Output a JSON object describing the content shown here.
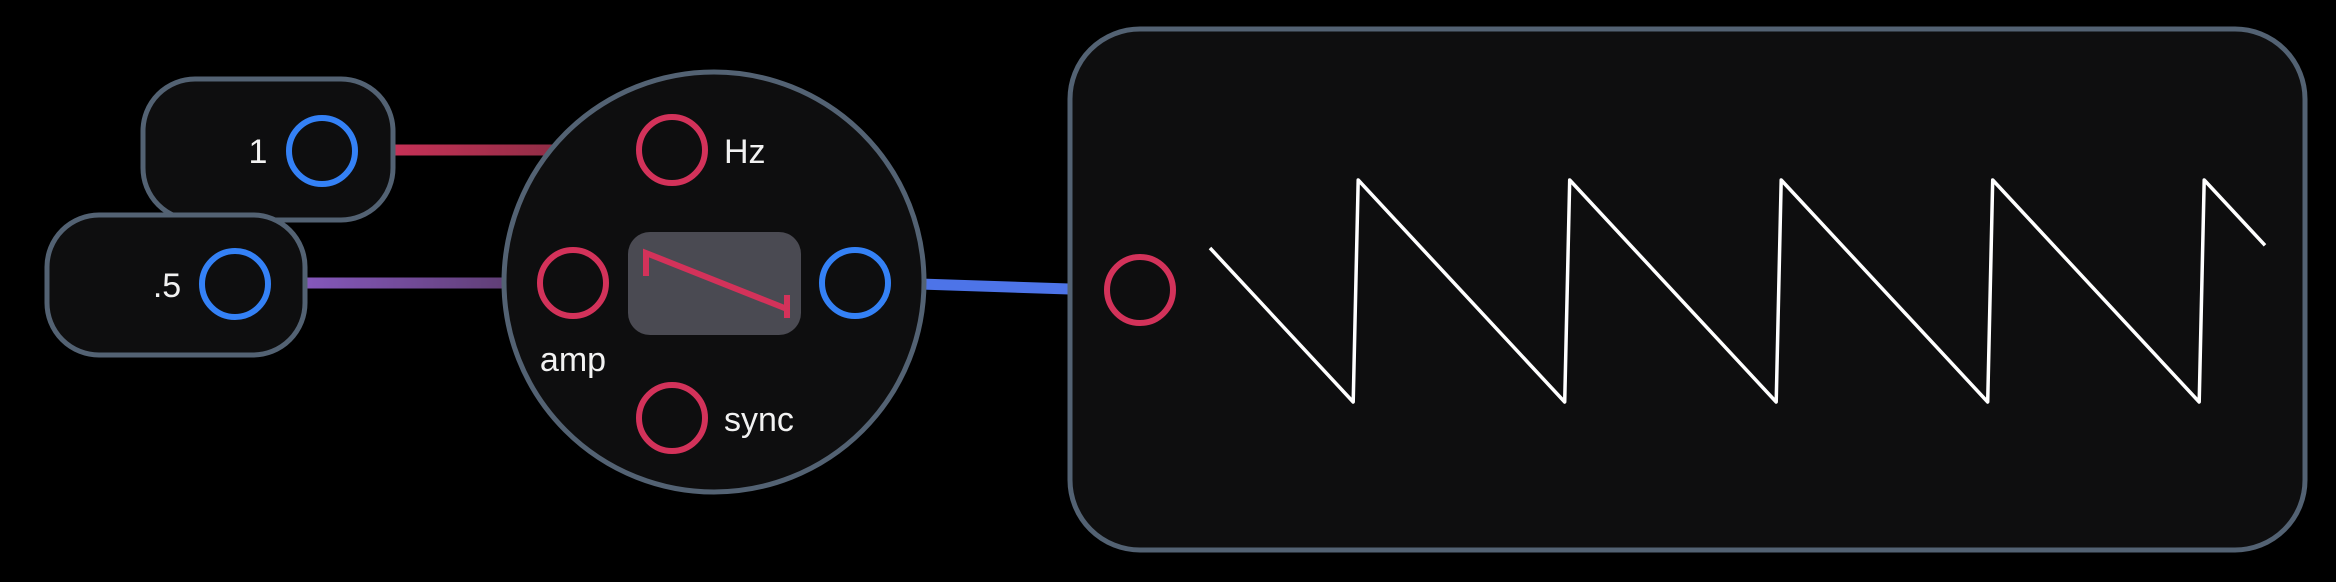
{
  "constant_nodes": [
    {
      "value": "1",
      "output_port": "out"
    },
    {
      "value": ".5",
      "output_port": "out"
    }
  ],
  "oscillator": {
    "waveform": "sawtooth",
    "inputs": [
      {
        "label": "Hz"
      },
      {
        "label": "amp"
      },
      {
        "label": "sync"
      }
    ]
  },
  "scope": {
    "input_port": "in",
    "waveform": "sawtooth",
    "cycles": 4.3
  },
  "colors": {
    "background": "#000000",
    "node_fill": "#0e0e0f",
    "node_border": "#536273",
    "input_port": "#d3325a",
    "output_port": "#3481f6",
    "hz_cable": "#d3325a",
    "amp_cable": "#8b5cc8",
    "scope_cable": "#4d74e8",
    "wave_icon_bg": "#4a4a52",
    "trace": "#ffffff"
  }
}
